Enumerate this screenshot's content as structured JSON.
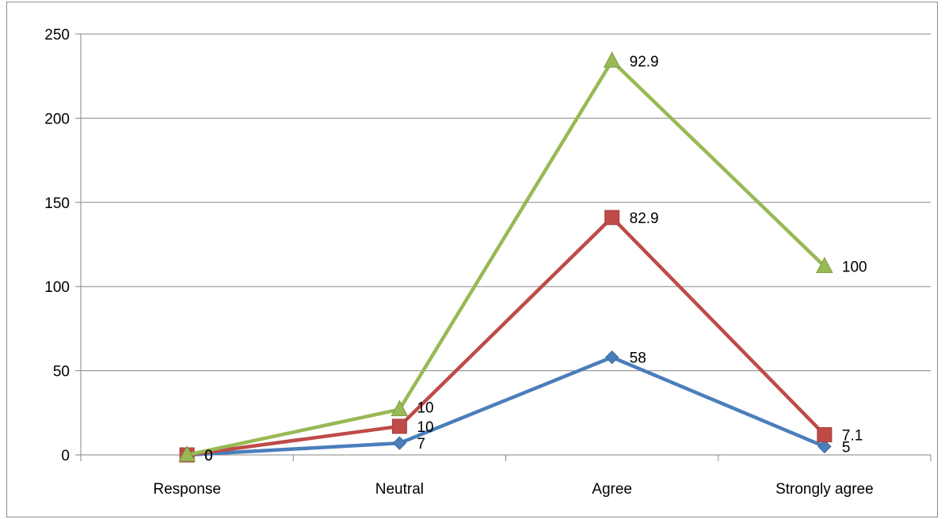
{
  "chart_data": {
    "type": "line",
    "categories": [
      "Response",
      "Neutral",
      "Agree",
      "Strongly agree"
    ],
    "ylim": [
      0,
      250
    ],
    "yticks": [
      0,
      50,
      100,
      150,
      200,
      250
    ],
    "grid": true,
    "legend": "none",
    "series": [
      {
        "color": "#4a7ebb",
        "marker": "diamond",
        "values": [
          0,
          7,
          58,
          5
        ],
        "labels": [
          "0",
          "7",
          "58",
          "5"
        ]
      },
      {
        "color": "#be4b48",
        "marker": "square",
        "values": [
          0,
          17,
          141,
          12
        ],
        "labels": [
          "0",
          "10",
          "82.9",
          "7.1"
        ]
      },
      {
        "color": "#98b954",
        "marker": "triangle",
        "values": [
          0,
          27,
          234,
          112
        ],
        "labels": [
          "0",
          "10",
          "92.9",
          "100"
        ]
      }
    ]
  }
}
